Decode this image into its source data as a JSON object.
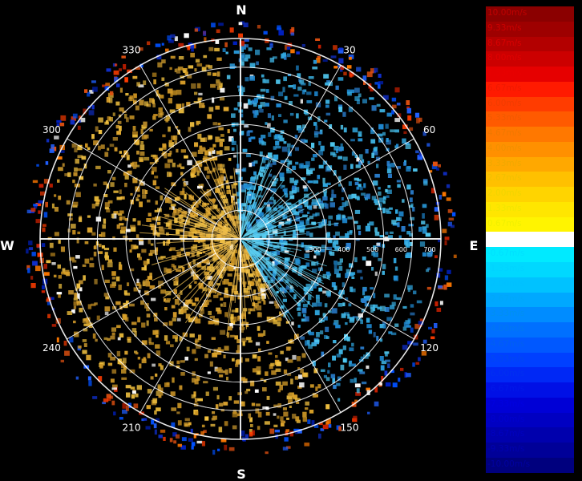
{
  "chart_data": {
    "type": "polar",
    "cardinal_labels": {
      "north": "N",
      "south": "S",
      "east": "E",
      "west": "W"
    },
    "azimuth_labels": [
      {
        "deg": 30,
        "text": "30"
      },
      {
        "deg": 60,
        "text": "60"
      },
      {
        "deg": 120,
        "text": "120"
      },
      {
        "deg": 150,
        "text": "150"
      },
      {
        "deg": 210,
        "text": "210"
      },
      {
        "deg": 240,
        "text": "240"
      },
      {
        "deg": 300,
        "text": "300"
      },
      {
        "deg": 330,
        "text": "330"
      }
    ],
    "range_labels": [
      {
        "value": 300,
        "text": "300"
      },
      {
        "value": 400,
        "text": "400"
      },
      {
        "value": 500,
        "text": "500"
      },
      {
        "value": 600,
        "text": "600"
      },
      {
        "value": 700,
        "text": "700"
      }
    ],
    "range_rings": [
      100,
      200,
      300,
      400,
      500,
      600,
      700
    ],
    "max_range": 700,
    "grid": true,
    "legend_position": "right",
    "colorbar": [
      {
        "label": "10.00m/s",
        "color": "#8b0000",
        "text_color": "#c00000"
      },
      {
        "label": "9.33m/s",
        "color": "#9e0000",
        "text_color": "#cc0000"
      },
      {
        "label": "8.67m/s",
        "color": "#b30000",
        "text_color": "#d80000"
      },
      {
        "label": "8.00m/s",
        "color": "#cc0000",
        "text_color": "#e00000"
      },
      {
        "label": "7.33m/s",
        "color": "#e60000",
        "text_color": "#e80000"
      },
      {
        "label": "6.67m/s",
        "color": "#ff1a00",
        "text_color": "#ee1a00"
      },
      {
        "label": "6.00m/s",
        "color": "#ff3c00",
        "text_color": "#f03c00"
      },
      {
        "label": "5.33m/s",
        "color": "#ff5a00",
        "text_color": "#f05a00"
      },
      {
        "label": "4.67m/s",
        "color": "#ff7800",
        "text_color": "#f07800"
      },
      {
        "label": "4.00m/s",
        "color": "#ff9000",
        "text_color": "#f09000"
      },
      {
        "label": "3.33m/s",
        "color": "#ffa800",
        "text_color": "#f0a800"
      },
      {
        "label": "2.67m/s",
        "color": "#ffc000",
        "text_color": "#f0c000"
      },
      {
        "label": "2.00m/s",
        "color": "#ffd400",
        "text_color": "#f0d400"
      },
      {
        "label": "1.33m/s",
        "color": "#ffe600",
        "text_color": "#f0e600"
      },
      {
        "label": "0.67m/s",
        "color": "#fff400",
        "text_color": "#f0f000"
      },
      {
        "label": "0.00m/s",
        "color": "#ffffff",
        "text_color": "#ffffff"
      },
      {
        "label": "-0.67m/s",
        "color": "#00eaff",
        "text_color": "#00e0ff"
      },
      {
        "label": "-1.33m/s",
        "color": "#00d8ff",
        "text_color": "#00d4ff"
      },
      {
        "label": "-2.00m/s",
        "color": "#00c2ff",
        "text_color": "#00c0ff"
      },
      {
        "label": "-2.67m/s",
        "color": "#00a8ff",
        "text_color": "#00a8f8"
      },
      {
        "label": "-3.33m/s",
        "color": "#008cff",
        "text_color": "#0090f0"
      },
      {
        "label": "-4.00m/s",
        "color": "#0070ff",
        "text_color": "#0078f0"
      },
      {
        "label": "-4.67m/s",
        "color": "#0058ff",
        "text_color": "#0060f0"
      },
      {
        "label": "-5.33m/s",
        "color": "#0040ff",
        "text_color": "#0048f0"
      },
      {
        "label": "-6.00m/s",
        "color": "#0028f5",
        "text_color": "#0030f0"
      },
      {
        "label": "-6.67m/s",
        "color": "#0010e6",
        "text_color": "#0018e8"
      },
      {
        "label": "-7.33m/s",
        "color": "#0000d6",
        "text_color": "#0000e0"
      },
      {
        "label": "-8.00m/s",
        "color": "#0000c2",
        "text_color": "#0000d0"
      },
      {
        "label": "-8.67m/s",
        "color": "#0000ad",
        "text_color": "#0000c0"
      },
      {
        "label": "-9.33m/s",
        "color": "#000098",
        "text_color": "#0000b0"
      },
      {
        "label": "-10.00m/s",
        "color": "#00007e",
        "text_color": "#0000a0"
      }
    ]
  }
}
